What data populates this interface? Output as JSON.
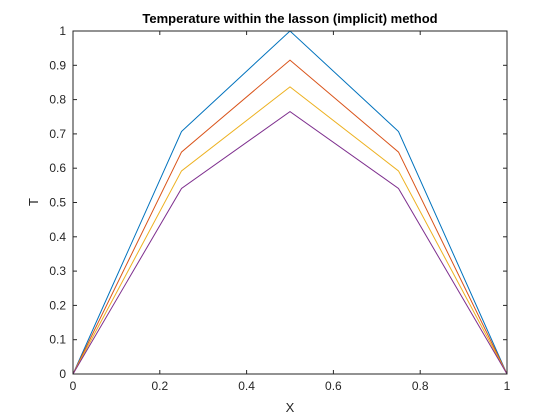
{
  "chart_data": {
    "type": "line",
    "title": "Temperature within the lasson (implicit) method",
    "xlabel": "X",
    "ylabel": "T",
    "xlim": [
      0,
      1
    ],
    "ylim": [
      0,
      1
    ],
    "grid": false,
    "x": [
      0,
      0.25,
      0.5,
      0.75,
      1
    ],
    "xticks": [
      "0",
      "0.2",
      "0.4",
      "0.6",
      "0.8",
      "1"
    ],
    "xtick_values": [
      0,
      0.2,
      0.4,
      0.6,
      0.8,
      1
    ],
    "yticks": [
      "0",
      "0.1",
      "0.2",
      "0.3",
      "0.4",
      "0.5",
      "0.6",
      "0.7",
      "0.8",
      "0.9",
      "1"
    ],
    "ytick_values": [
      0,
      0.1,
      0.2,
      0.3,
      0.4,
      0.5,
      0.6,
      0.7,
      0.8,
      0.9,
      1
    ],
    "series": [
      {
        "color": "#0072bd",
        "values": [
          0,
          0.707,
          1.0,
          0.707,
          0
        ]
      },
      {
        "color": "#d95319",
        "values": [
          0,
          0.647,
          0.915,
          0.647,
          0
        ]
      },
      {
        "color": "#edb120",
        "values": [
          0,
          0.592,
          0.837,
          0.592,
          0
        ]
      },
      {
        "color": "#7e2f8e",
        "values": [
          0,
          0.541,
          0.765,
          0.541,
          0
        ]
      }
    ]
  }
}
